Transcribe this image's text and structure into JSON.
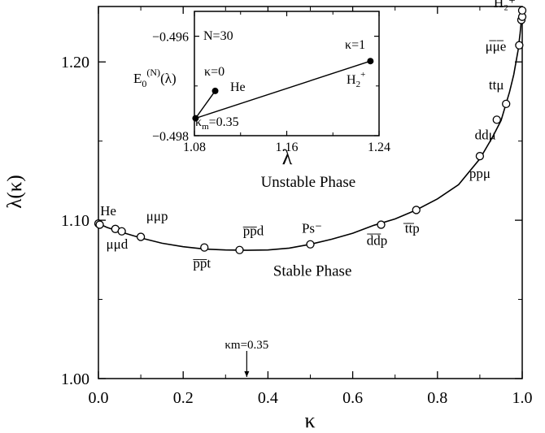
{
  "chart_data": [
    {
      "type": "line",
      "title": "",
      "xlabel": "κ",
      "ylabel": "λ(κ)",
      "xlim": [
        0.0,
        1.0
      ],
      "ylim": [
        1.0,
        1.235
      ],
      "x_ticks": [
        0.0,
        0.2,
        0.4,
        0.6,
        0.8,
        1.0
      ],
      "x_tick_labels": [
        "0.0",
        "0.2",
        "0.4",
        "0.6",
        "0.8",
        "1.0"
      ],
      "y_ticks": [
        1.0,
        1.1,
        1.2
      ],
      "y_tick_labels": [
        "1.00",
        "1.10",
        "1.20"
      ],
      "grid": false,
      "series": [
        {
          "kind": "curve",
          "x": [
            0.0,
            0.02,
            0.05,
            0.1,
            0.15,
            0.2,
            0.25,
            0.3,
            0.35,
            0.4,
            0.45,
            0.5,
            0.55,
            0.6,
            0.65,
            0.7,
            0.75,
            0.8,
            0.85,
            0.9,
            0.93,
            0.95,
            0.97,
            0.98,
            0.99,
            0.995,
            1.0
          ],
          "y": [
            1.098,
            1.0955,
            1.0928,
            1.0888,
            1.0855,
            1.0833,
            1.0818,
            1.0812,
            1.081,
            1.0812,
            1.0824,
            1.0848,
            1.088,
            1.0918,
            1.0968,
            1.1008,
            1.1065,
            1.1135,
            1.1225,
            1.1388,
            1.1525,
            1.163,
            1.181,
            1.192,
            1.207,
            1.218,
            1.232
          ]
        },
        {
          "kind": "points",
          "marker": "open-circle",
          "x": [
            0.0,
            0.003,
            0.04,
            0.055,
            0.1,
            0.25,
            0.333,
            0.5,
            0.667,
            0.75,
            0.9,
            0.94,
            0.962,
            0.993,
            0.998,
            1.0,
            1.0
          ],
          "y": [
            1.0979,
            1.0972,
            1.0945,
            1.093,
            1.0895,
            1.0828,
            1.0812,
            1.0848,
            1.0972,
            1.1065,
            1.1405,
            1.1635,
            1.1735,
            1.2105,
            1.2265,
            1.2285,
            1.2325
          ]
        }
      ],
      "point_labels": [
        {
          "text": "He",
          "x": 0.0,
          "y": 1.0979
        },
        {
          "text": "μμp",
          "x": 0.1,
          "y": 1.0895
        },
        {
          "text": "μμd",
          "x": 0.04,
          "y": 1.0945
        },
        {
          "text": "p̅p̅d",
          "x": 0.333,
          "y": 1.0812
        },
        {
          "text": "p̅p̅t",
          "x": 0.25,
          "y": 1.0828
        },
        {
          "text": "Ps⁻",
          "x": 0.5,
          "y": 1.0848
        },
        {
          "text": "d̅d̅p",
          "x": 0.667,
          "y": 1.0972
        },
        {
          "text": "t̅t̅p",
          "x": 0.75,
          "y": 1.1065
        },
        {
          "text": "ppμ",
          "x": 0.9,
          "y": 1.1405
        },
        {
          "text": "ddμ",
          "x": 0.94,
          "y": 1.1635
        },
        {
          "text": "ttμ",
          "x": 0.962,
          "y": 1.1735
        },
        {
          "text": "μ̅μ̅e",
          "x": 0.993,
          "y": 1.2105
        },
        {
          "text": "H₂⁺",
          "x": 1.0,
          "y": 1.2325
        }
      ],
      "annotations": [
        {
          "text": "Unstable Phase",
          "x": 0.495,
          "y": 1.121
        },
        {
          "text": "Stable Phase",
          "x": 0.505,
          "y": 1.065
        },
        {
          "text": "κm=0.35",
          "x": 0.35,
          "y": 1.019,
          "arrow_to_y": 1.0
        }
      ]
    },
    {
      "type": "line",
      "inset": true,
      "xlabel": "λ",
      "ylabel": "E0(N)(λ)",
      "xlim": [
        1.08,
        1.24
      ],
      "ylim": [
        -0.498,
        -0.4955
      ],
      "x_ticks": [
        1.08,
        1.16,
        1.24
      ],
      "x_tick_labels": [
        "1.08",
        "1.16",
        "1.24"
      ],
      "y_ticks": [
        -0.496,
        -0.498
      ],
      "y_tick_labels": [
        "−0.496",
        "−0.498"
      ],
      "grid": false,
      "series": [
        {
          "marker": "filled-circle",
          "x": [
            1.098,
            1.081,
            1.2325
          ],
          "y": [
            -0.4971,
            -0.49765,
            -0.4965
          ]
        }
      ],
      "labels": {
        "n": "N=30",
        "kappa0": "κ=0",
        "kappa1": "κ=1",
        "he": "He",
        "km": "κm=0.35",
        "h2": "H₂⁺"
      }
    }
  ]
}
